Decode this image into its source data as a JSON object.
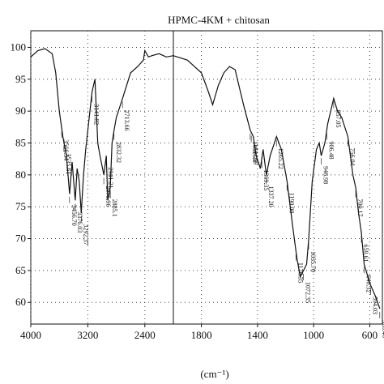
{
  "chart_data": {
    "type": "line",
    "title": "HPMC-4KM + chitosan",
    "x_label": "(cm⁻¹)",
    "x": [
      4000,
      3900,
      3800,
      3700,
      3650,
      3600,
      3550,
      3500,
      3456,
      3420,
      3376,
      3350,
      3320,
      3292,
      3260,
      3230,
      3200,
      3141,
      3100,
      3060,
      3030,
      2975,
      2941,
      2920,
      2885,
      2860,
      2832,
      2800,
      2713,
      2600,
      2500,
      2420,
      2400,
      2350,
      2300,
      2200,
      2100,
      2000,
      1900,
      1850,
      1800,
      1750,
      1720,
      1680,
      1640,
      1600,
      1560,
      1500,
      1452,
      1430,
      1410,
      1380,
      1360,
      1337,
      1310,
      1265,
      1230,
      1190,
      1150,
      1120,
      1095,
      1072,
      1050,
      1035,
      1010,
      980,
      960,
      946,
      920,
      900,
      857,
      830,
      800,
      756,
      720,
      700,
      680,
      660,
      640,
      600,
      560,
      528
    ],
    "series": [
      {
        "name": "HPMC-4KM + chitosan",
        "color": "#111111",
        "values": [
          98.5,
          99.5,
          99.8,
          99,
          96,
          90,
          86,
          83,
          77,
          82,
          76,
          81,
          79,
          74,
          80,
          84,
          87,
          93,
          95,
          85,
          83,
          80,
          83,
          76,
          78,
          85,
          87,
          89,
          92,
          96,
          97,
          98,
          99.5,
          98.5,
          98.7,
          99,
          98.5,
          98.7,
          98,
          97,
          96,
          93,
          91,
          94,
          96,
          97,
          96.5,
          91,
          87,
          86,
          83,
          81,
          84,
          80,
          83,
          86,
          84,
          79,
          72,
          67,
          64,
          65,
          66,
          70,
          79,
          84,
          85,
          83,
          85,
          88,
          92,
          90,
          89,
          86,
          80,
          78,
          74,
          71,
          66,
          63,
          61,
          59
        ]
      }
    ],
    "xlim": [
      4000,
      510
    ],
    "x_break": 2000,
    "xticks": [
      4000,
      3200,
      2400,
      1800,
      1400,
      1000,
      600
    ],
    "ylim": [
      56.6,
      102.6
    ],
    "yticks": [
      60,
      65,
      70,
      75,
      80,
      85,
      90,
      95,
      100
    ],
    "grid": true,
    "annotations": [
      {
        "x": 3566.54,
        "label": "3566.54"
      },
      {
        "x": 3535.61,
        "label": "3535.61"
      },
      {
        "x": 3456.7,
        "label": "3456.70"
      },
      {
        "x": 3376.03,
        "label": "3376.03"
      },
      {
        "x": 3292.37,
        "label": "3292.37"
      },
      {
        "x": 3141.82,
        "label": "3141.82"
      },
      {
        "x": 2975.96,
        "label": "2975.96"
      },
      {
        "x": 2941.21,
        "label": "2941.21"
      },
      {
        "x": 2885.1,
        "label": "2885.1"
      },
      {
        "x": 2832.32,
        "label": "2832.32"
      },
      {
        "x": 2713.66,
        "label": "2713.66"
      },
      {
        "x": 1452.3,
        "label": "1452.30"
      },
      {
        "x": 1444.59,
        "label": "1444.59"
      },
      {
        "x": 1369.35,
        "label": "1369.35"
      },
      {
        "x": 1337.2,
        "label": "1337.20"
      },
      {
        "x": 1265.22,
        "label": "1265.22"
      },
      {
        "x": 1190.0,
        "label": "1190.00"
      },
      {
        "x": 1126.35,
        "label": "1126.35"
      },
      {
        "x": 1072.35,
        "label": "1072.35"
      },
      {
        "x": 1035.7,
        "label": "1035.70"
      },
      {
        "x": 946.98,
        "label": "946.98"
      },
      {
        "x": 906.48,
        "label": "906.48"
      },
      {
        "x": 857.05,
        "label": "857.05"
      },
      {
        "x": 756.04,
        "label": "756.04"
      },
      {
        "x": 700.17,
        "label": "700.17"
      },
      {
        "x": 659.61,
        "label": "659.61"
      },
      {
        "x": 640.32,
        "label": "640.32"
      },
      {
        "x": 594.03,
        "label": "594.03"
      },
      {
        "x": 528.46,
        "label": "528.46"
      }
    ]
  }
}
